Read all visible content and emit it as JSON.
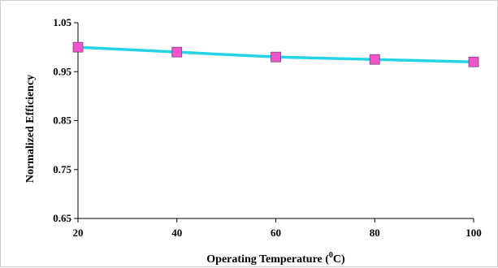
{
  "chart_data": {
    "type": "line",
    "title": "",
    "xlabel": "Operating Temperature (",
    "xlabel_sup": "0",
    "xlabel_end": "C)",
    "ylabel": "Normalized Efficiency",
    "x": [
      20,
      40,
      60,
      80,
      100
    ],
    "series": [
      {
        "values": [
          1.0,
          0.99,
          0.98,
          0.975,
          0.97
        ],
        "line_color": "#26d4e8",
        "marker_color": "#ee55cc",
        "marker": "square"
      }
    ],
    "xlim": [
      20,
      100
    ],
    "ylim": [
      0.65,
      1.05
    ],
    "xticks": [
      "20",
      "40",
      "60",
      "80",
      "100"
    ],
    "yticks": [
      "0.65",
      "0.75",
      "0.85",
      "0.95",
      "1.05"
    ],
    "grid": false,
    "legend": "none"
  }
}
